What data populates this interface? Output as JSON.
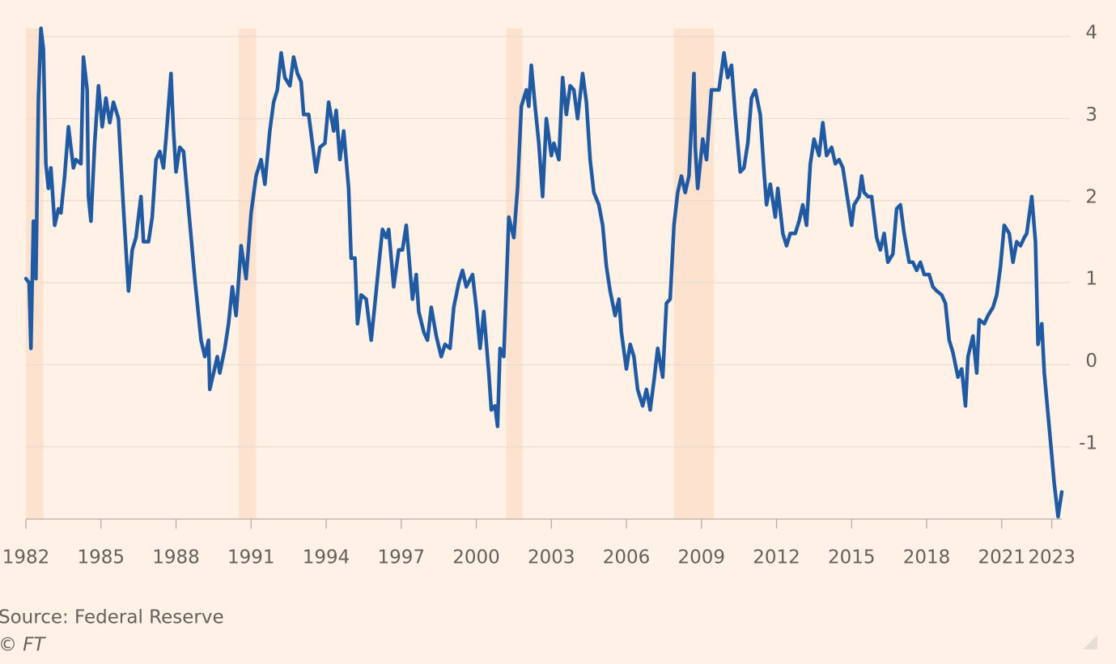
{
  "chart_data": {
    "type": "line",
    "source": "Source: Federal Reserve",
    "credit": "© FT",
    "x": [
      1982.0,
      1982.13,
      1982.2,
      1982.3,
      1982.4,
      1982.5,
      1982.6,
      1982.7,
      1982.8,
      1982.9,
      1983.0,
      1983.15,
      1983.3,
      1983.4,
      1983.55,
      1983.7,
      1983.9,
      1984.0,
      1984.2,
      1984.3,
      1984.45,
      1984.5,
      1984.6,
      1984.75,
      1984.9,
      1985.05,
      1985.2,
      1985.35,
      1985.5,
      1985.7,
      1985.9,
      1986.1,
      1986.25,
      1986.4,
      1986.6,
      1986.7,
      1986.9,
      1987.05,
      1987.2,
      1987.35,
      1987.5,
      1987.6,
      1987.8,
      1987.9,
      1988.0,
      1988.15,
      1988.3,
      1988.5,
      1988.75,
      1989.0,
      1989.15,
      1989.3,
      1989.35,
      1989.5,
      1989.65,
      1989.75,
      1989.95,
      1990.1,
      1990.25,
      1990.4,
      1990.6,
      1990.8,
      1991.0,
      1991.2,
      1991.4,
      1991.55,
      1991.75,
      1991.9,
      1992.05,
      1992.2,
      1992.35,
      1992.55,
      1992.7,
      1992.85,
      1993.0,
      1993.1,
      1993.3,
      1993.45,
      1993.6,
      1993.75,
      1993.95,
      1994.1,
      1994.3,
      1994.4,
      1994.55,
      1994.7,
      1994.9,
      1995.0,
      1995.15,
      1995.25,
      1995.4,
      1995.6,
      1995.8,
      1995.9,
      1996.1,
      1996.25,
      1996.4,
      1996.5,
      1996.7,
      1996.9,
      1997.05,
      1997.2,
      1997.45,
      1997.6,
      1997.7,
      1997.9,
      1998.05,
      1998.2,
      1998.4,
      1998.6,
      1998.75,
      1998.95,
      1999.1,
      1999.3,
      1999.45,
      1999.6,
      1999.85,
      2000.0,
      2000.15,
      2000.3,
      2000.5,
      2000.6,
      2000.75,
      2000.85,
      2000.95,
      2001.1,
      2001.3,
      2001.5,
      2001.65,
      2001.8,
      2002.0,
      2002.1,
      2002.2,
      2002.35,
      2002.5,
      2002.65,
      2002.8,
      2003.0,
      2003.1,
      2003.3,
      2003.45,
      2003.6,
      2003.75,
      2003.9,
      2004.05,
      2004.25,
      2004.4,
      2004.55,
      2004.7,
      2004.9,
      2005.05,
      2005.2,
      2005.35,
      2005.55,
      2005.7,
      2005.8,
      2006.0,
      2006.15,
      2006.3,
      2006.45,
      2006.65,
      2006.8,
      2006.95,
      2007.1,
      2007.25,
      2007.45,
      2007.6,
      2007.75,
      2007.9,
      2008.05,
      2008.2,
      2008.35,
      2008.5,
      2008.7,
      2008.75,
      2008.85,
      2009.05,
      2009.2,
      2009.4,
      2009.55,
      2009.7,
      2009.9,
      2010.05,
      2010.2,
      2010.35,
      2010.55,
      2010.7,
      2010.85,
      2011.0,
      2011.15,
      2011.35,
      2011.5,
      2011.6,
      2011.75,
      2011.95,
      2012.05,
      2012.25,
      2012.4,
      2012.55,
      2012.75,
      2012.9,
      2013.05,
      2013.2,
      2013.35,
      2013.5,
      2013.7,
      2013.85,
      2014.0,
      2014.2,
      2014.35,
      2014.5,
      2014.65,
      2014.8,
      2015.0,
      2015.1,
      2015.3,
      2015.4,
      2015.5,
      2015.65,
      2015.8,
      2016.0,
      2016.15,
      2016.3,
      2016.45,
      2016.65,
      2016.8,
      2016.95,
      2017.1,
      2017.3,
      2017.45,
      2017.6,
      2017.75,
      2017.9,
      2018.1,
      2018.25,
      2018.4,
      2018.6,
      2018.75,
      2018.9,
      2019.05,
      2019.25,
      2019.4,
      2019.55,
      2019.65,
      2019.85,
      2020.0,
      2020.1,
      2020.3,
      2020.45,
      2020.65,
      2020.8,
      2020.95,
      2021.1,
      2021.3,
      2021.45,
      2021.6,
      2021.75,
      2021.9,
      2022.0,
      2022.2,
      2022.35,
      2022.45,
      2022.6,
      2022.7,
      2022.85,
      2023.0,
      2023.1,
      2023.25,
      2023.4
    ],
    "series": [
      {
        "color": "#1f5aa3",
        "values": [
          1.05,
          1.0,
          0.2,
          1.75,
          1.05,
          3.25,
          4.1,
          3.85,
          2.45,
          2.15,
          2.4,
          1.7,
          1.9,
          1.85,
          2.3,
          2.9,
          2.4,
          2.5,
          2.45,
          3.75,
          3.35,
          2.05,
          1.75,
          2.7,
          3.4,
          2.9,
          3.25,
          2.95,
          3.2,
          3.0,
          1.9,
          0.9,
          1.4,
          1.55,
          2.05,
          1.5,
          1.5,
          1.8,
          2.5,
          2.6,
          2.4,
          2.75,
          3.55,
          2.85,
          2.35,
          2.65,
          2.6,
          1.9,
          1.05,
          0.3,
          0.1,
          0.3,
          -0.3,
          -0.1,
          0.1,
          -0.1,
          0.2,
          0.5,
          0.95,
          0.6,
          1.45,
          1.05,
          1.85,
          2.3,
          2.5,
          2.2,
          2.85,
          3.2,
          3.35,
          3.8,
          3.5,
          3.4,
          3.75,
          3.55,
          3.45,
          3.05,
          3.05,
          2.7,
          2.35,
          2.65,
          2.7,
          3.2,
          2.85,
          3.1,
          2.5,
          2.85,
          2.15,
          1.3,
          1.3,
          0.5,
          0.85,
          0.8,
          0.3,
          0.6,
          1.2,
          1.65,
          1.55,
          1.65,
          0.95,
          1.4,
          1.4,
          1.7,
          0.8,
          1.1,
          0.65,
          0.4,
          0.3,
          0.7,
          0.35,
          0.1,
          0.25,
          0.2,
          0.7,
          1.0,
          1.15,
          0.95,
          1.1,
          0.7,
          0.2,
          0.65,
          -0.1,
          -0.55,
          -0.5,
          -0.75,
          0.2,
          0.1,
          1.8,
          1.55,
          2.15,
          3.15,
          3.35,
          3.15,
          3.65,
          3.15,
          2.7,
          2.05,
          3.0,
          2.55,
          2.7,
          2.5,
          3.5,
          3.05,
          3.4,
          3.35,
          3.0,
          3.55,
          3.2,
          2.5,
          2.1,
          1.95,
          1.7,
          1.2,
          0.9,
          0.6,
          0.8,
          0.4,
          -0.05,
          0.25,
          0.1,
          -0.3,
          -0.5,
          -0.3,
          -0.55,
          -0.2,
          0.2,
          -0.15,
          0.75,
          0.8,
          1.7,
          2.1,
          2.3,
          2.1,
          2.3,
          3.55,
          2.65,
          2.15,
          2.75,
          2.5,
          3.35,
          3.35,
          3.35,
          3.8,
          3.5,
          3.65,
          3.05,
          2.35,
          2.4,
          2.7,
          3.25,
          3.35,
          3.05,
          2.35,
          1.95,
          2.2,
          1.8,
          2.15,
          1.6,
          1.45,
          1.6,
          1.6,
          1.75,
          1.95,
          1.7,
          2.45,
          2.75,
          2.55,
          2.95,
          2.55,
          2.65,
          2.45,
          2.5,
          2.4,
          2.1,
          1.7,
          1.95,
          2.05,
          2.3,
          2.1,
          2.05,
          2.05,
          1.55,
          1.4,
          1.6,
          1.25,
          1.35,
          1.9,
          1.95,
          1.6,
          1.25,
          1.25,
          1.15,
          1.25,
          1.1,
          1.1,
          0.95,
          0.9,
          0.85,
          0.75,
          0.3,
          0.15,
          -0.15,
          -0.05,
          -0.5,
          0.1,
          0.35,
          -0.1,
          0.55,
          0.5,
          0.6,
          0.7,
          0.85,
          1.2,
          1.7,
          1.6,
          1.25,
          1.5,
          1.45,
          1.55,
          1.6,
          2.05,
          1.5,
          0.25,
          0.5,
          -0.1,
          -0.6,
          -1.1,
          -1.45,
          -1.85,
          -1.55
        ]
      }
    ],
    "shaded_periods": [
      [
        1982.0,
        1982.7
      ],
      [
        1990.5,
        1991.2
      ],
      [
        2001.2,
        2001.85
      ],
      [
        2007.9,
        2009.5
      ]
    ],
    "shade_color": "#fde2d0",
    "xlim": [
      1982,
      2023.4
    ],
    "ylim": [
      -1.88,
      4.1
    ],
    "xticks": [
      1982,
      1985,
      1988,
      1991,
      1994,
      1997,
      2000,
      2003,
      2006,
      2009,
      2012,
      2015,
      2018,
      2021,
      2023
    ],
    "yticks": [
      -1,
      0,
      1,
      2,
      3,
      4
    ],
    "grid": true
  }
}
